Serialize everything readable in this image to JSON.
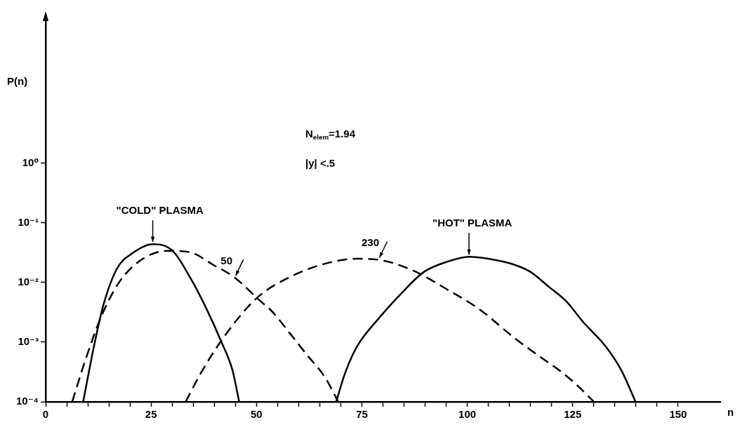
{
  "chart_data": {
    "type": "line",
    "xlabel": "n",
    "ylabel": "P(n)",
    "annotations": [
      "N$_{elem}$=1.94",
      "|y| <.5",
      {
        "text": "\"COLD\" PLASMA",
        "x": 25.4,
        "y": 0.044
      },
      {
        "text": "50",
        "x": 44.9,
        "y": 0.012
      },
      {
        "text": "230",
        "x": 79,
        "y": 0.024
      },
      {
        "text": "\"HOT\" PLASMA",
        "x": 100.4,
        "y": 0.027
      }
    ],
    "series": [
      {
        "color": "#000000",
        "line_style": "solid",
        "x": [
          8.9,
          11.6,
          13.7,
          16.9,
          20.6,
          25.4,
          30.1,
          34.3,
          38,
          41.7,
          44.3,
          45.9
        ],
        "values": [
          0.0001,
          0.00095,
          0.0042,
          0.017,
          0.031,
          0.044,
          0.034,
          0.012,
          0.0038,
          0.001,
          0.00034,
          0.0001
        ]
      },
      {
        "color": "#000000",
        "line_style": "dashed",
        "x": [
          6.3,
          9.5,
          13.2,
          17.4,
          22.7,
          29,
          34.3,
          39.6,
          44.9,
          50.1,
          54,
          57.6,
          61.9,
          66.2,
          69.4
        ],
        "values": [
          0.0001,
          0.00052,
          0.0027,
          0.01,
          0.024,
          0.034,
          0.032,
          0.02,
          0.012,
          0.0055,
          0.0031,
          0.0015,
          0.00062,
          0.00026,
          0.0001
        ]
      },
      {
        "color": "#000000",
        "line_style": "dashed",
        "x": [
          33.2,
          36.9,
          42.2,
          50.1,
          57.6,
          65.6,
          73.7,
          79,
          87,
          95,
          103,
          111,
          118,
          122,
          126,
          130
        ],
        "values": [
          0.0001,
          0.00031,
          0.0012,
          0.0055,
          0.012,
          0.02,
          0.025,
          0.024,
          0.016,
          0.0078,
          0.0035,
          0.0012,
          0.00052,
          0.00033,
          0.00019,
          0.0001
        ]
      },
      {
        "color": "#000000",
        "line_style": "solid",
        "x": [
          68.9,
          71,
          73.7,
          79,
          84.3,
          89.7,
          95,
          100.4,
          105,
          111,
          115,
          119.3,
          123.5,
          127.4,
          132.8,
          136.6,
          139.9
        ],
        "values": [
          0.0001,
          0.0003,
          0.00081,
          0.0025,
          0.0065,
          0.015,
          0.022,
          0.027,
          0.025,
          0.02,
          0.015,
          0.0085,
          0.0048,
          0.0022,
          0.00085,
          0.00033,
          0.0001
        ]
      }
    ],
    "marker": "none",
    "grid": false,
    "legend": false,
    "xlim": [
      0,
      160
    ],
    "xticks": [
      0,
      {
        "value": 5,
        "label": null
      },
      {
        "value": 10,
        "label": null
      },
      {
        "value": 15,
        "label": null
      },
      {
        "value": 20,
        "label": null
      },
      25,
      {
        "value": 30,
        "label": null
      },
      {
        "value": 35,
        "label": null
      },
      {
        "value": 40,
        "label": null
      },
      {
        "value": 45,
        "label": null
      },
      50,
      {
        "value": 55,
        "label": null
      },
      {
        "value": 60,
        "label": null
      },
      {
        "value": 65,
        "label": null
      },
      {
        "value": 70,
        "label": null
      },
      75,
      {
        "value": 80,
        "label": null
      },
      {
        "value": 85,
        "label": null
      },
      {
        "value": 90,
        "label": null
      },
      {
        "value": 95,
        "label": null
      },
      100,
      {
        "value": 105,
        "label": null
      },
      {
        "value": 110,
        "label": null
      },
      {
        "value": 115,
        "label": null
      },
      {
        "value": 120,
        "label": null
      },
      125,
      {
        "value": 130,
        "label": null
      },
      {
        "value": 135,
        "label": null
      },
      {
        "value": 140,
        "label": null
      },
      {
        "value": 145,
        "label": null
      },
      150
    ],
    "log": "y",
    "ylim": [
      0.0001,
      300
    ],
    "yticks": [
      {
        "value": 0.0001,
        "label": "10⁻⁴"
      },
      {
        "value": 0.001,
        "label": "10⁻³"
      },
      {
        "value": 0.01,
        "label": "10⁻²"
      },
      {
        "value": 0.1,
        "label": "10⁻¹"
      },
      {
        "value": 1,
        "label": "10⁰"
      }
    ]
  }
}
